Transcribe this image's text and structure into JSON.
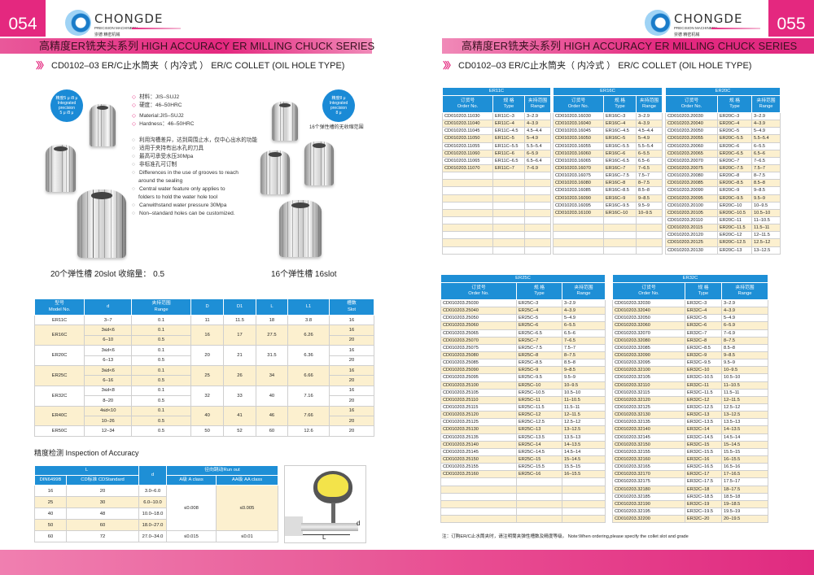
{
  "left_page": {
    "page_number": "054",
    "title": "高精度ER铣夹头系列   HIGH ACCURACY ER MILLING CHUCK SERIES",
    "subtitle": "CD0102–03 ER/C止水筒夹（ 内冷式 ） ER/C COLLET (OIL HOLE TYPE)",
    "logo": {
      "brand": "CHONGDE",
      "tagline": "PRECISION MACHINERY",
      "cn": "崇德 精密机械"
    },
    "badge_left": [
      "精度5 μ /8 μ",
      "Integrated",
      "precision",
      "5 μ /8 μ"
    ],
    "badge_right": [
      "精度8 μ",
      "Integrated",
      "precision",
      "8 μ"
    ],
    "badge_right_caption": "16个弹性槽的无收缩范围",
    "specs": [
      "材料：JIS–SUJ2",
      "硬度：46–50HRC",
      "Material:JIS–SUJ2",
      "Hardness：46–50HRC"
    ],
    "features": [
      "利用沟槽差异，达到周围止水，仅中心出水的功能",
      "适用于夹持有出水孔的刀具",
      "最高可承受水压30Mpa",
      "非标准孔可订制",
      "Differences in the use of grooves to reach",
      "around the sealing",
      "Central water feature only applies to",
      "folders to hold the water hole tool",
      "Canwithstand water pressure 30Mpa",
      "Non–standard holes can be customized."
    ],
    "caption_20slot": "20个弹性槽  20slot   收缩量： 0.5",
    "caption_16slot": "16个弹性槽 16slot",
    "spec_table": {
      "headers": [
        [
          "型号",
          "Model No."
        ],
        [
          "d",
          ""
        ],
        [
          "夹持范围",
          "Range"
        ],
        [
          "D",
          ""
        ],
        [
          "D1",
          ""
        ],
        [
          "L",
          ""
        ],
        [
          "L1",
          ""
        ],
        [
          "槽数",
          "Slot"
        ]
      ],
      "models": [
        {
          "model": "ER11C",
          "D": "11",
          "D1": "11.5",
          "L": "18",
          "L1": "3.8",
          "rows": [
            {
              "d": "3–7",
              "range": "0.1",
              "slot": "16"
            }
          ]
        },
        {
          "model": "ER16C",
          "D": "16",
          "D1": "17",
          "L": "27.5",
          "L1": "6.26",
          "rows": [
            {
              "d": "3≤d<6",
              "range": "0.1",
              "slot": "16"
            },
            {
              "d": "6–10",
              "range": "0.5",
              "slot": "20"
            }
          ]
        },
        {
          "model": "ER20C",
          "D": "20",
          "D1": "21",
          "L": "31.5",
          "L1": "6.36",
          "rows": [
            {
              "d": "3≤d<6",
              "range": "0.1",
              "slot": "16"
            },
            {
              "d": "6–13",
              "range": "0.5",
              "slot": "20"
            }
          ]
        },
        {
          "model": "ER25C",
          "D": "25",
          "D1": "26",
          "L": "34",
          "L1": "6.66",
          "rows": [
            {
              "d": "3≤d<6",
              "range": "0.1",
              "slot": "16"
            },
            {
              "d": "6–16",
              "range": "0.5",
              "slot": "20"
            }
          ]
        },
        {
          "model": "ER32C",
          "D": "32",
          "D1": "33",
          "L": "40",
          "L1": "7.16",
          "rows": [
            {
              "d": "3≤d<8",
              "range": "0.1",
              "slot": "16"
            },
            {
              "d": "8–20",
              "range": "0.5",
              "slot": "20"
            }
          ]
        },
        {
          "model": "ER40C",
          "D": "40",
          "D1": "41",
          "L": "46",
          "L1": "7.66",
          "rows": [
            {
              "d": "4≤d<10",
              "range": "0.1",
              "slot": "16"
            },
            {
              "d": "10–26",
              "range": "0.5",
              "slot": "20"
            }
          ]
        },
        {
          "model": "ER50C",
          "D": "50",
          "D1": "52",
          "L": "60",
          "L1": "12.6",
          "rows": [
            {
              "d": "12–34",
              "range": "0.5",
              "slot": "20"
            }
          ]
        }
      ]
    },
    "inspection": {
      "heading": "精度检测 Inspection of Accuracy",
      "h_L": "L",
      "h_d": "d",
      "h_runout": "径向跳动Run out",
      "h_din": "DIN6499B",
      "h_cd": "CD标准  CDStandard",
      "h_a": "A级 A class",
      "h_aa": "AA级 AA class",
      "rows": [
        [
          "16",
          "20",
          "3.0–6.0"
        ],
        [
          "25",
          "30",
          "6.0–10.0"
        ],
        [
          "40",
          "48",
          "10.0–18.0"
        ],
        [
          "50",
          "60",
          "18.0–27.0"
        ],
        [
          "60",
          "72",
          "27.0–34.0"
        ]
      ],
      "a_merged": "≤0.008",
      "aa_merged": "≤0.005",
      "a_last": "≤0.015",
      "aa_last": "≤0.01",
      "diagram_d": "d",
      "diagram_L": "L"
    }
  },
  "right_page": {
    "page_number": "055",
    "title": "高精度ER铣夹头系列   HIGH ACCURACY ER MILLING CHUCK SERIES",
    "subtitle": "CD0102–03 ER/C止水筒夹（ 内冷式 ） ER/C COLLET (OIL HOLE TYPE)",
    "logo": {
      "brand": "CHONGDE",
      "tagline": "PRECISION MACHINERY",
      "cn": "崇德 精密机械"
    },
    "col_headers": {
      "order_cn": "订货号",
      "order_en": "Order No.",
      "type_cn": "规 格",
      "type_en": "Type",
      "range_cn": "夹持范围",
      "range_en": "Range"
    },
    "tables": [
      {
        "title": "ER11C",
        "rows": [
          [
            "CD010203.11030",
            "ER11C–3",
            "3–2.9"
          ],
          [
            "CD010203.11040",
            "ER11C–4",
            "4–3.9"
          ],
          [
            "CD010203.11045",
            "ER11C–4.5",
            "4.5–4.4"
          ],
          [
            "CD010203.11050",
            "ER11C–5",
            "5–4.9"
          ],
          [
            "CD010203.11055",
            "ER11C–5.5",
            "5.5–5.4"
          ],
          [
            "CD010203.11060",
            "ER11C–6",
            "6–5.9"
          ],
          [
            "CD010203.11065",
            "ER11C–6.5",
            "6.5–6.4"
          ],
          [
            "CD010203.11070",
            "ER11C–7",
            "7–6.9"
          ]
        ]
      },
      {
        "title": "ER16C",
        "rows": [
          [
            "CD010203.16030",
            "ER16C–3",
            "3–2.9"
          ],
          [
            "CD010203.16040",
            "ER16C–4",
            "4–3.9"
          ],
          [
            "CD010203.16045",
            "ER16C–4.5",
            "4.5–4.4"
          ],
          [
            "CD010203.16050",
            "ER16C–5",
            "5–4.9"
          ],
          [
            "CD010203.16055",
            "ER16C–5.5",
            "5.5–5.4"
          ],
          [
            "CD010203.16060",
            "ER16C–6",
            "6–5.5"
          ],
          [
            "CD010203.16065",
            "ER16C–6.5",
            "6.5–6"
          ],
          [
            "CD010203.16070",
            "ER16C–7",
            "7–6.5"
          ],
          [
            "CD010203.16075",
            "ER16C–7.5",
            "7.5–7"
          ],
          [
            "CD010203.16080",
            "ER16C–8",
            "8–7.5"
          ],
          [
            "CD010203.16085",
            "ER16C–8.5",
            "8.5–8"
          ],
          [
            "CD010203.16090",
            "ER16C–9",
            "9–8.5"
          ],
          [
            "CD010203.16095",
            "ER16C–9.5",
            "9.5–9"
          ],
          [
            "CD010203.16100",
            "ER16C–10",
            "10–9.5"
          ]
        ]
      },
      {
        "title": "ER20C",
        "rows": [
          [
            "CD010203.20030",
            "ER20C–3",
            "3–2.9"
          ],
          [
            "CD010203.20040",
            "ER20C–4",
            "4–3.9"
          ],
          [
            "CD010203.20050",
            "ER20C–5",
            "5–4.9"
          ],
          [
            "CD010203.20055",
            "ER20C–5.5",
            "5.5–5.4"
          ],
          [
            "CD010203.20060",
            "ER20C–6",
            "6–5.5"
          ],
          [
            "CD010203.20065",
            "ER20C–6.5",
            "6.5–6"
          ],
          [
            "CD010203.20070",
            "ER20C–7",
            "7–6.5"
          ],
          [
            "CD010203.20075",
            "ER20C–7.5",
            "7.5–7"
          ],
          [
            "CD010203.20080",
            "ER20C–8",
            "8–7.5"
          ],
          [
            "CD010203.20085",
            "ER20C–8.5",
            "8.5–8"
          ],
          [
            "CD010203.20090",
            "ER20C–9",
            "9–8.5"
          ],
          [
            "CD010203.20095",
            "ER20C–9.5",
            "9.5–9"
          ],
          [
            "CD010203.20100",
            "ER20C–10",
            "10–9.5"
          ],
          [
            "CD010203.20105",
            "ER20C–10.5",
            "10.5–10"
          ],
          [
            "CD010203.20110",
            "ER20C–11",
            "11–10.5"
          ],
          [
            "CD010203.20115",
            "ER20C–11.5",
            "11.5–11"
          ],
          [
            "CD010203.20120",
            "ER20C–12",
            "12–11.5"
          ],
          [
            "CD010203.20125",
            "ER20C–12.5",
            "12.5–12"
          ],
          [
            "CD010203.20130",
            "ER20C–13",
            "13–12.5"
          ]
        ]
      },
      {
        "title": "ER25C",
        "rows": [
          [
            "CD010203.25030",
            "ER25C–3",
            "3–2.9"
          ],
          [
            "CD010203.25040",
            "ER25C–4",
            "4–3.9"
          ],
          [
            "CD010203.25050",
            "ER25C–5",
            "5–4.9"
          ],
          [
            "CD010203.25060",
            "ER25C–6",
            "6–5.5"
          ],
          [
            "CD010203.25065",
            "ER25C–6.5",
            "6.5–6"
          ],
          [
            "CD010203.25070",
            "ER25C–7",
            "7–6.5"
          ],
          [
            "CD010203.25075",
            "ER25C–7.5",
            "7.5–7"
          ],
          [
            "CD010203.25080",
            "ER25C–8",
            "8–7.5"
          ],
          [
            "CD010203.25085",
            "ER25C–8.5",
            "8.5–8"
          ],
          [
            "CD010203.25090",
            "ER25C–9",
            "9–8.5"
          ],
          [
            "CD010203.25095",
            "ER25C–9.5",
            "9.5–9"
          ],
          [
            "CD010203.25100",
            "ER25C–10",
            "10–9.5"
          ],
          [
            "CD010203.25105",
            "ER25C–10.5",
            "10.5–10"
          ],
          [
            "CD010203.25110",
            "ER25C–11",
            "11–10.5"
          ],
          [
            "CD010203.25115",
            "ER25C–11.5",
            "11.5–11"
          ],
          [
            "CD010203.25120",
            "ER25C–12",
            "12–11.5"
          ],
          [
            "CD010203.25125",
            "ER25C–12.5",
            "12.5–12"
          ],
          [
            "CD010203.25130",
            "ER25C–13",
            "13–12.5"
          ],
          [
            "CD010203.25135",
            "ER25C–13.5",
            "13.5–13"
          ],
          [
            "CD010203.25140",
            "ER25C–14",
            "14–13.5"
          ],
          [
            "CD010203.25145",
            "ER25C–14.5",
            "14.5–14"
          ],
          [
            "CD010203.25150",
            "ER25C–15",
            "15–14.5"
          ],
          [
            "CD010203.25155",
            "ER25C–15.5",
            "15.5–15"
          ],
          [
            "CD010203.25160",
            "ER25C–16",
            "16–15.5"
          ]
        ]
      },
      {
        "title": "ER32C",
        "rows": [
          [
            "CD010203.32030",
            "ER32C–3",
            "3–2.9"
          ],
          [
            "CD010203.32040",
            "ER32C–4",
            "4–3.9"
          ],
          [
            "CD010203.32050",
            "ER32C–5",
            "5–4.9"
          ],
          [
            "CD010203.32060",
            "ER32C–6",
            "6–5.9"
          ],
          [
            "CD010203.32070",
            "ER32C–7",
            "7–6.9"
          ],
          [
            "CD010203.32080",
            "ER32C–8",
            "8–7.5"
          ],
          [
            "CD010203.32085",
            "ER32C–8.5",
            "8.5–8"
          ],
          [
            "CD010203.32090",
            "ER32C–9",
            "9–8.5"
          ],
          [
            "CD010203.32095",
            "ER32C–9.5",
            "9.5–9"
          ],
          [
            "CD010203.32100",
            "ER32C–10",
            "10–9.5"
          ],
          [
            "CD010203.32105",
            "ER32C–10.5",
            "10.5–10"
          ],
          [
            "CD010203.32110",
            "ER32C–11",
            "11–10.5"
          ],
          [
            "CD010203.32115",
            "ER32C–11.5",
            "11.5–11"
          ],
          [
            "CD010203.32120",
            "ER32C–12",
            "12–11.5"
          ],
          [
            "CD010203.32125",
            "ER32C–12.5",
            "12.5–12"
          ],
          [
            "CD010203.32130",
            "ER32C–13",
            "13–12.5"
          ],
          [
            "CD010203.32135",
            "ER32C–13.5",
            "13.5–13"
          ],
          [
            "CD010203.32140",
            "ER32C–14",
            "14–13.5"
          ],
          [
            "CD010203.32145",
            "ER32C–14.5",
            "14.5–14"
          ],
          [
            "CD010203.32150",
            "ER32C–15",
            "15–14.5"
          ],
          [
            "CD010203.32155",
            "ER32C–15.5",
            "15.5–15"
          ],
          [
            "CD010203.32160",
            "ER32C–16",
            "16–15.5"
          ],
          [
            "CD010203.32165",
            "ER32C–16.5",
            "16.5–16"
          ],
          [
            "CD010203.32170",
            "ER32C–17",
            "17–16.5"
          ],
          [
            "CD010203.32175",
            "ER32C–17.5",
            "17.5–17"
          ],
          [
            "CD010203.32180",
            "ER32C–18",
            "18–17.5"
          ],
          [
            "CD010203.32185",
            "ER32C–18.5",
            "18.5–18"
          ],
          [
            "CD010203.32190",
            "ER32C–19",
            "19–18.5"
          ],
          [
            "CD010203.32195",
            "ER32C–19.5",
            "19.5–19"
          ],
          [
            "CD010203.32200",
            "ER32C–20",
            "20–19.5"
          ]
        ]
      }
    ],
    "note": "注：订购ER/C止水筒夹时，请注明筒夹弹性槽数及精度等级。     Note:When ordering,please specify the collet slot and grade"
  },
  "colors": {
    "brand_pink": "#e4287f",
    "header_blue": "#1e8fd6",
    "row_cream": "#fcf0cf"
  }
}
